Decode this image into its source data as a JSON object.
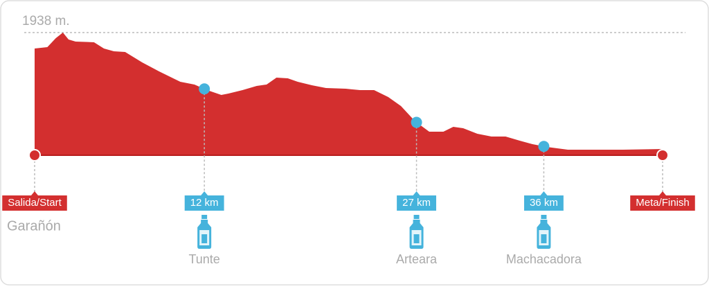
{
  "chart_data": {
    "type": "area",
    "max_elevation": {
      "value": 1938,
      "label": "1938 m."
    },
    "x": [
      0,
      0.9,
      1.5,
      2.0,
      2.4,
      2.9,
      4.2,
      4.9,
      5.6,
      6.4,
      7.6,
      8.8,
      10.3,
      11.3,
      12.2,
      13.2,
      13.7,
      14.7,
      15.7,
      16.4,
      17.1,
      17.9,
      18.6,
      19.6,
      20.6,
      22.0,
      23.0,
      24.0,
      25.0,
      25.9,
      26.9,
      27.9,
      28.9,
      29.6,
      30.3,
      31.3,
      32.3,
      33.3,
      34.3,
      35.2,
      36.2,
      37.7,
      41.6,
      44.4
    ],
    "values": [
      1686,
      1708,
      1851,
      1938,
      1829,
      1796,
      1785,
      1686,
      1643,
      1632,
      1467,
      1325,
      1161,
      1117,
      1029,
      953,
      975,
      1029,
      1095,
      1117,
      1226,
      1215,
      1161,
      1106,
      1062,
      1051,
      1029,
      1029,
      920,
      777,
      536,
      372,
      372,
      449,
      427,
      339,
      296,
      296,
      230,
      175,
      131,
      88,
      88,
      99
    ],
    "color": "#d32f2f",
    "xlim": [
      0,
      44.4
    ],
    "ylim": [
      0,
      1938
    ],
    "start": {
      "label": "Salida/Start",
      "place": "Garañón"
    },
    "finish": {
      "label": "Meta/Finish"
    },
    "water_stops": {
      "km": [
        12,
        27,
        36
      ],
      "value_labels": [
        "12 km",
        "27 km",
        "36 km"
      ],
      "places": [
        "Tunte",
        "Arteara",
        "Machacadora"
      ],
      "color": "#45b3dc"
    }
  }
}
